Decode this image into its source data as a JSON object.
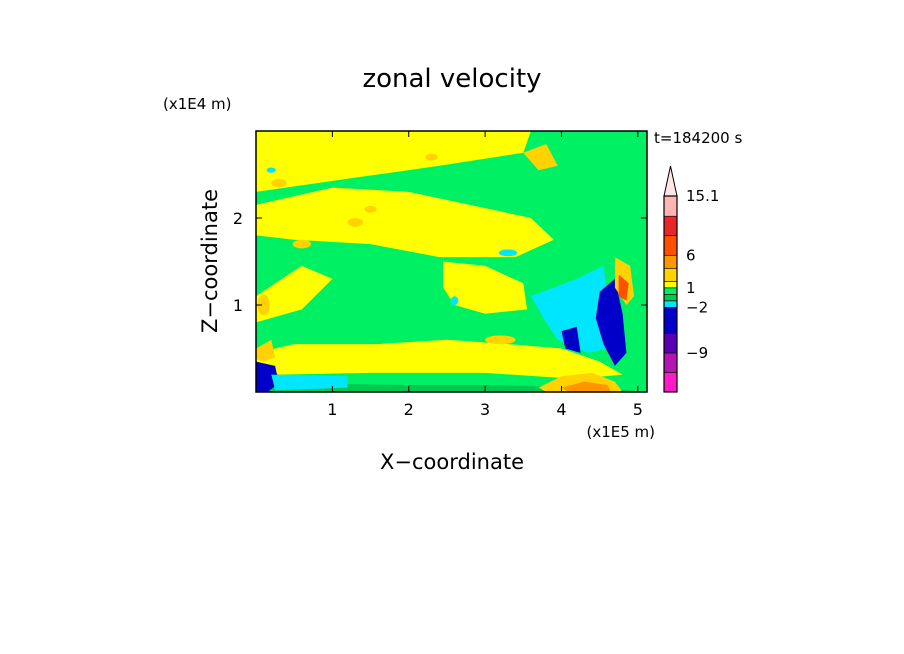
{
  "chart_data": {
    "type": "heatmap",
    "title": "zonal velocity",
    "xlabel": "X−coordinate",
    "ylabel": "Z−coordinate",
    "x_scale_label": "(x1E5 m)",
    "y_scale_label": "(x1E4 m)",
    "time_label": "t=184200 s",
    "xlim": [
      0,
      5.12
    ],
    "ylim": [
      0,
      3.0
    ],
    "x_ticks": [
      1,
      2,
      3,
      4,
      5
    ],
    "y_ticks": [
      1,
      2
    ],
    "colorbar": {
      "bounds": [
        -15,
        -12,
        -9,
        -6,
        -2,
        -1,
        0,
        1,
        2,
        4,
        6,
        9,
        12,
        15.1
      ],
      "colors": [
        "#ff1ac8",
        "#b414b4",
        "#5a00b4",
        "#0000c8",
        "#00e6ff",
        "#00c850",
        "#00f064",
        "#ffff00",
        "#ffd200",
        "#ff9600",
        "#ff5000",
        "#e62828",
        "#ffb4b4"
      ],
      "tick_labels": [
        "15.1",
        "6",
        "1",
        "−2",
        "−9"
      ],
      "tick_values": [
        15.1,
        6,
        1,
        -2,
        -9
      ],
      "extend_max": true,
      "top_color": "#ffe6e6"
    },
    "field_regions": [
      {
        "value": 0.5,
        "desc": "background",
        "poly": [
          [
            0,
            0
          ],
          [
            5.12,
            0
          ],
          [
            5.12,
            3
          ],
          [
            0,
            3
          ]
        ]
      },
      {
        "value": 1.5,
        "desc": "upper band",
        "poly": [
          [
            0,
            3
          ],
          [
            3.6,
            3
          ],
          [
            3.5,
            2.75
          ],
          [
            2.4,
            2.6
          ],
          [
            1.2,
            2.45
          ],
          [
            0,
            2.3
          ]
        ]
      },
      {
        "value": 1.5,
        "desc": "mid-upper band",
        "poly": [
          [
            0,
            2.15
          ],
          [
            1.0,
            2.35
          ],
          [
            2.0,
            2.3
          ],
          [
            2.8,
            2.15
          ],
          [
            3.6,
            2.0
          ],
          [
            3.9,
            1.75
          ],
          [
            3.4,
            1.55
          ],
          [
            2.4,
            1.55
          ],
          [
            1.5,
            1.7
          ],
          [
            0.5,
            1.75
          ],
          [
            0,
            1.8
          ]
        ]
      },
      {
        "value": 1.5,
        "desc": "left band",
        "poly": [
          [
            0,
            1.1
          ],
          [
            0.6,
            1.45
          ],
          [
            1.0,
            1.3
          ],
          [
            0.6,
            0.95
          ],
          [
            0,
            0.8
          ]
        ]
      },
      {
        "value": 1.5,
        "desc": "central patch",
        "poly": [
          [
            2.45,
            1.5
          ],
          [
            3.0,
            1.45
          ],
          [
            3.5,
            1.25
          ],
          [
            3.55,
            0.95
          ],
          [
            3.0,
            0.9
          ],
          [
            2.6,
            1.0
          ],
          [
            2.45,
            1.2
          ]
        ]
      },
      {
        "value": 1.5,
        "desc": "lower band",
        "poly": [
          [
            0,
            0.45
          ],
          [
            0.5,
            0.55
          ],
          [
            1.6,
            0.55
          ],
          [
            2.5,
            0.6
          ],
          [
            3.3,
            0.55
          ],
          [
            4.0,
            0.5
          ],
          [
            4.5,
            0.35
          ],
          [
            4.8,
            0.2
          ],
          [
            4.2,
            0.15
          ],
          [
            3.0,
            0.22
          ],
          [
            1.5,
            0.22
          ],
          [
            0.3,
            0.2
          ],
          [
            0,
            0.3
          ]
        ]
      },
      {
        "value": -0.5,
        "desc": "bottom strip",
        "poly": [
          [
            0,
            0.05
          ],
          [
            0.5,
            0.1
          ],
          [
            2.0,
            0.08
          ],
          [
            3.0,
            0.08
          ],
          [
            4.5,
            0.05
          ],
          [
            5.12,
            0
          ],
          [
            0,
            0
          ]
        ]
      },
      {
        "value": -1.5,
        "desc": "right blue zone",
        "poly": [
          [
            3.6,
            1.1
          ],
          [
            4.2,
            1.3
          ],
          [
            4.55,
            1.45
          ],
          [
            4.62,
            1.0
          ],
          [
            4.6,
            0.5
          ],
          [
            4.35,
            0.45
          ],
          [
            3.95,
            0.6
          ],
          [
            3.8,
            0.8
          ]
        ]
      },
      {
        "value": -3,
        "desc": "right dark blue column",
        "poly": [
          [
            4.5,
            1.15
          ],
          [
            4.7,
            1.3
          ],
          [
            4.8,
            0.9
          ],
          [
            4.85,
            0.45
          ],
          [
            4.7,
            0.3
          ],
          [
            4.55,
            0.55
          ],
          [
            4.45,
            0.85
          ]
        ]
      },
      {
        "value": -3,
        "desc": "dark blue lobe",
        "poly": [
          [
            4.0,
            0.7
          ],
          [
            4.2,
            0.75
          ],
          [
            4.25,
            0.45
          ],
          [
            4.05,
            0.5
          ]
        ]
      },
      {
        "value": -3,
        "desc": "bottom-left dark",
        "poly": [
          [
            0,
            0.35
          ],
          [
            0.25,
            0.3
          ],
          [
            0.3,
            0.1
          ],
          [
            0.15,
            0.0
          ],
          [
            0,
            0.0
          ]
        ]
      },
      {
        "value": -1.5,
        "desc": "bottom-left cyan",
        "poly": [
          [
            0.2,
            0.2
          ],
          [
            1.2,
            0.18
          ],
          [
            1.2,
            0.05
          ],
          [
            0.25,
            0.02
          ]
        ]
      },
      {
        "value": 3,
        "desc": "bottom orange lens",
        "poly": [
          [
            3.7,
            0.05
          ],
          [
            4.0,
            0.18
          ],
          [
            4.4,
            0.22
          ],
          [
            4.7,
            0.12
          ],
          [
            4.8,
            0.0
          ],
          [
            3.8,
            0.0
          ]
        ]
      },
      {
        "value": 5,
        "desc": "bottom red core",
        "poly": [
          [
            4.0,
            0.05
          ],
          [
            4.3,
            0.12
          ],
          [
            4.6,
            0.08
          ],
          [
            4.65,
            0.0
          ],
          [
            4.1,
            0.0
          ]
        ]
      },
      {
        "value": 3,
        "desc": "right orange",
        "poly": [
          [
            4.7,
            1.55
          ],
          [
            4.9,
            1.45
          ],
          [
            4.95,
            1.1
          ],
          [
            4.85,
            1.0
          ],
          [
            4.7,
            1.2
          ]
        ]
      },
      {
        "value": 7.5,
        "desc": "right red core",
        "poly": [
          [
            4.75,
            1.35
          ],
          [
            4.88,
            1.25
          ],
          [
            4.85,
            1.05
          ],
          [
            4.75,
            1.1
          ]
        ]
      },
      {
        "value": 3,
        "desc": "left orange lower",
        "poly": [
          [
            0,
            0.5
          ],
          [
            0.2,
            0.6
          ],
          [
            0.25,
            0.4
          ],
          [
            0.1,
            0.35
          ],
          [
            0,
            0.38
          ]
        ]
      },
      {
        "value": 3,
        "desc": "top right orange",
        "poly": [
          [
            3.5,
            2.75
          ],
          [
            3.8,
            2.85
          ],
          [
            3.95,
            2.6
          ],
          [
            3.7,
            2.55
          ]
        ]
      }
    ],
    "field_blobs": [
      {
        "value": 3,
        "cx": 0.6,
        "cy": 1.7,
        "rx": 0.12,
        "ry": 0.05
      },
      {
        "value": 3,
        "cx": 1.3,
        "cy": 1.95,
        "rx": 0.1,
        "ry": 0.05
      },
      {
        "value": 3,
        "cx": 1.5,
        "cy": 2.1,
        "rx": 0.08,
        "ry": 0.04
      },
      {
        "value": 3,
        "cx": 0.3,
        "cy": 2.4,
        "rx": 0.1,
        "ry": 0.05
      },
      {
        "value": 3,
        "cx": 2.3,
        "cy": 2.7,
        "rx": 0.08,
        "ry": 0.04
      },
      {
        "value": 3,
        "cx": 3.2,
        "cy": 0.6,
        "rx": 0.2,
        "ry": 0.05
      },
      {
        "value": 3,
        "cx": 0.1,
        "cy": 1.0,
        "rx": 0.08,
        "ry": 0.12
      },
      {
        "value": -1.5,
        "cx": 0.2,
        "cy": 2.55,
        "rx": 0.06,
        "ry": 0.03
      },
      {
        "value": -1.5,
        "cx": 3.3,
        "cy": 1.6,
        "rx": 0.12,
        "ry": 0.04
      },
      {
        "value": -1.5,
        "cx": 2.6,
        "cy": 1.05,
        "rx": 0.05,
        "ry": 0.05
      }
    ]
  }
}
